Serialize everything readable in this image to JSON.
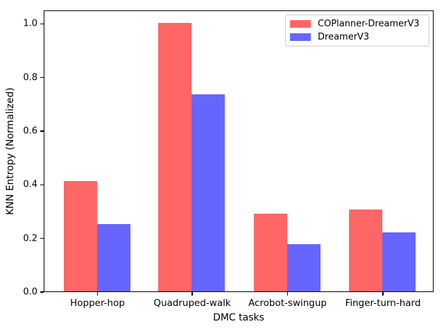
{
  "chart_data": {
    "type": "bar",
    "categories": [
      "Hopper-hop",
      "Quadruped-walk",
      "Acrobot-swingup",
      "Finger-turn-hard"
    ],
    "series": [
      {
        "name": "COPlanner-DreamerV3",
        "color": "#ff6666",
        "values": [
          0.41,
          1.0,
          0.29,
          0.305
        ]
      },
      {
        "name": "DreamerV3",
        "color": "#6666ff",
        "values": [
          0.25,
          0.735,
          0.175,
          0.22
        ]
      }
    ],
    "title": "",
    "xlabel": "DMC tasks",
    "ylabel": "KNN Entropy (Normalized)",
    "ylim": [
      0,
      1.05
    ],
    "yticks": [
      0.0,
      0.2,
      0.4,
      0.6,
      0.8,
      1.0
    ],
    "ytick_labels": [
      "0.0",
      "0.2",
      "0.4",
      "0.6",
      "0.8",
      "1.0"
    ],
    "grid": false,
    "legend_position": "upper right"
  }
}
